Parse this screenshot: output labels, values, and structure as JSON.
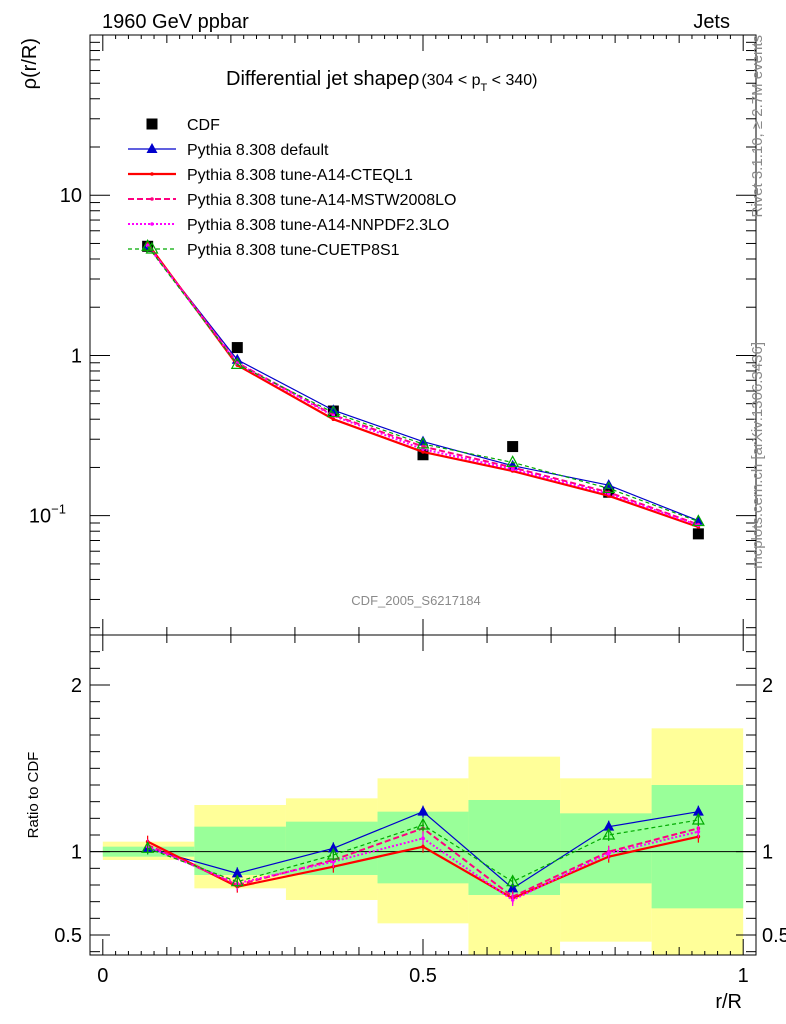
{
  "header": {
    "left": "1960 GeV ppbar",
    "right": "Jets"
  },
  "side_labels": {
    "rivet": "Rivet 3.1.10, ≥ 2.7M events",
    "mcplots": "mcplots.cern.ch [arXiv:1306.3436]"
  },
  "watermark": "CDF_2005_S6217184",
  "chart_data": [
    {
      "type": "scatter",
      "title": "Differential jet shapeρ",
      "subtitle": "(304 < p",
      "subtitle_sub": "T",
      "subtitle_end": " < 340)",
      "ylabel": "ρ(r/R)",
      "xlabel": "r/R",
      "y_scale": "log",
      "xlim": [
        -0.02,
        1.02
      ],
      "ylim": [
        0.018,
        100
      ],
      "y_ticks": [
        {
          "value": 0.1,
          "base": "10",
          "exp": "−1"
        },
        {
          "value": 1,
          "base": "1",
          "exp": ""
        },
        {
          "value": 10,
          "base": "10",
          "exp": ""
        }
      ],
      "legend_position": "top-left",
      "x": [
        0.07,
        0.21,
        0.36,
        0.5,
        0.64,
        0.79,
        0.93
      ],
      "series": [
        {
          "name": "CDF",
          "color": "#000000",
          "style": "square",
          "values": [
            4.8,
            1.12,
            0.45,
            0.24,
            0.27,
            0.14,
            0.077
          ]
        },
        {
          "name": "Pythia 8.308 default",
          "color": "#0000cc",
          "style": "solid-triangle",
          "values": [
            4.85,
            0.94,
            0.455,
            0.29,
            0.205,
            0.155,
            0.093
          ]
        },
        {
          "name": "Pythia 8.308 tune-A14-CTEQL1",
          "color": "#ff0000",
          "style": "solid-thick",
          "values": [
            5.0,
            0.87,
            0.4,
            0.25,
            0.19,
            0.133,
            0.085
          ]
        },
        {
          "name": "Pythia 8.308 tune-A14-MSTW2008LO",
          "color": "#ff0080",
          "style": "dashed",
          "values": [
            4.9,
            0.9,
            0.425,
            0.27,
            0.2,
            0.14,
            0.088
          ]
        },
        {
          "name": "Pythia 8.308 tune-A14-NNPDF2.3LO",
          "color": "#ff00ff",
          "style": "dotted",
          "values": [
            4.85,
            0.89,
            0.42,
            0.26,
            0.195,
            0.137,
            0.087
          ]
        },
        {
          "name": "Pythia 8.308 tune-CUETP8S1",
          "color": "#00aa00",
          "style": "dashed-open-triangle",
          "values": [
            4.8,
            0.88,
            0.44,
            0.28,
            0.215,
            0.148,
            0.092
          ]
        }
      ]
    },
    {
      "type": "line",
      "ylabel": "Ratio to CDF",
      "xlabel": "r/R",
      "xlim": [
        -0.02,
        1.02
      ],
      "ylim": [
        0.38,
        2.3
      ],
      "x_ticks": [
        {
          "value": 0,
          "label": "0"
        },
        {
          "value": 0.5,
          "label": "0.5"
        },
        {
          "value": 1,
          "label": "1"
        }
      ],
      "y_ticks": [
        {
          "value": 0.5,
          "label": "0.5"
        },
        {
          "value": 1,
          "label": "1"
        },
        {
          "value": 2,
          "label": "2"
        }
      ],
      "x": [
        0.07,
        0.21,
        0.36,
        0.5,
        0.64,
        0.79,
        0.93
      ],
      "bands": [
        {
          "x0": 0.0,
          "x1": 0.143,
          "yellow": [
            0.95,
            1.06
          ],
          "green": [
            0.97,
            1.03
          ]
        },
        {
          "x0": 0.143,
          "x1": 0.286,
          "yellow": [
            0.78,
            1.28
          ],
          "green": [
            0.86,
            1.15
          ]
        },
        {
          "x0": 0.286,
          "x1": 0.429,
          "yellow": [
            0.71,
            1.32
          ],
          "green": [
            0.86,
            1.18
          ]
        },
        {
          "x0": 0.429,
          "x1": 0.571,
          "yellow": [
            0.57,
            1.44
          ],
          "green": [
            0.81,
            1.24
          ]
        },
        {
          "x0": 0.571,
          "x1": 0.714,
          "yellow": [
            0.38,
            1.57
          ],
          "green": [
            0.74,
            1.31
          ]
        },
        {
          "x0": 0.714,
          "x1": 0.857,
          "yellow": [
            0.46,
            1.44
          ],
          "green": [
            0.81,
            1.23
          ]
        },
        {
          "x0": 0.857,
          "x1": 1.0,
          "yellow": [
            0.38,
            1.74
          ],
          "green": [
            0.66,
            1.4
          ]
        }
      ],
      "series": [
        {
          "name": "Pythia 8.308 default",
          "color": "#0000cc",
          "style": "solid-triangle",
          "values": [
            1.02,
            0.87,
            1.02,
            1.24,
            0.78,
            1.15,
            1.24
          ]
        },
        {
          "name": "Pythia 8.308 tune-A14-CTEQL1",
          "color": "#ff0000",
          "style": "solid-thick",
          "values": [
            1.06,
            0.79,
            0.91,
            1.03,
            0.72,
            0.97,
            1.09
          ]
        },
        {
          "name": "Pythia 8.308 tune-A14-MSTW2008LO",
          "color": "#ff0080",
          "style": "dashed",
          "values": [
            1.04,
            0.8,
            0.95,
            1.14,
            0.73,
            1.0,
            1.14
          ]
        },
        {
          "name": "Pythia 8.308 tune-A14-NNPDF2.3LO",
          "color": "#ff00ff",
          "style": "dotted",
          "values": [
            1.03,
            0.81,
            0.94,
            1.08,
            0.71,
            0.99,
            1.12
          ]
        },
        {
          "name": "Pythia 8.308 tune-CUETP8S1",
          "color": "#00aa00",
          "style": "dashed-open-triangle",
          "values": [
            1.02,
            0.82,
            0.98,
            1.16,
            0.82,
            1.1,
            1.19
          ]
        }
      ]
    }
  ]
}
